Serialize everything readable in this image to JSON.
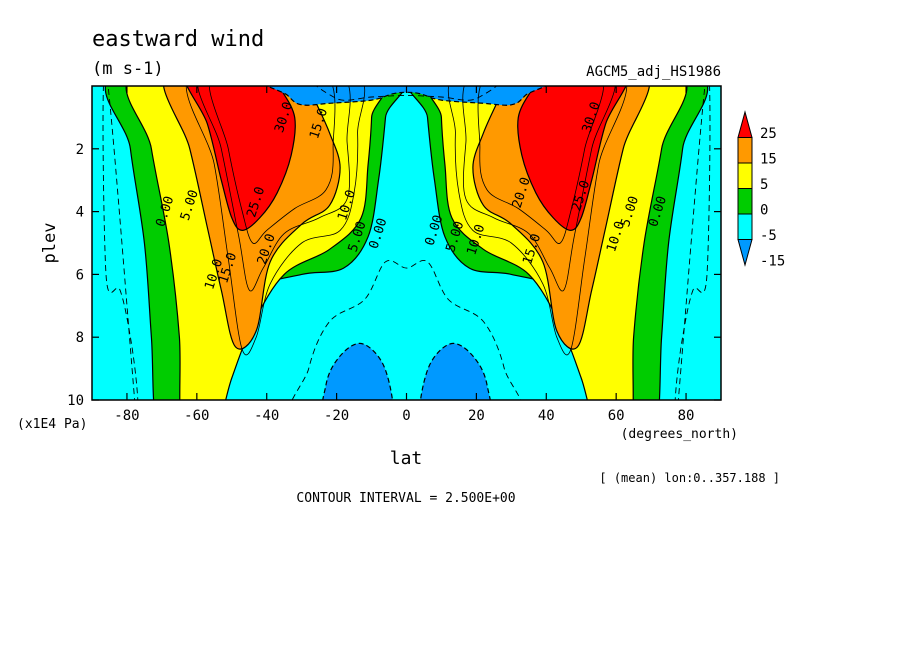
{
  "chart_data": {
    "type": "contour",
    "title": "eastward wind",
    "units": "(m s-1)",
    "dataset": "AGCM5_adj_HS1986",
    "xlabel": "lat",
    "x_units": "(degrees_north)",
    "ylabel": "plev",
    "y_units": "(x1E4 Pa)",
    "xlim": [
      -90,
      90
    ],
    "ylim": [
      10,
      0
    ],
    "x_ticks": [
      "-80",
      "-60",
      "-40",
      "-20",
      "0",
      "20",
      "40",
      "60",
      "80"
    ],
    "y_ticks": [
      "2",
      "4",
      "6",
      "8",
      "10"
    ],
    "averaging_note": "[ (mean) lon:0..357.188 ]",
    "contour_interval": "CONTOUR INTERVAL = 2.500E+00",
    "colorbar": {
      "labels": [
        "25",
        "15",
        "5",
        "0",
        "-5",
        "-15"
      ],
      "colors": [
        "#ff0000",
        "#ff9900",
        "#ffff00",
        "#00cc00",
        "#00ffff",
        "#0099ff"
      ]
    },
    "contour_labels": [
      {
        "text": "30.0",
        "lat": -35,
        "plev": 1.0
      },
      {
        "text": "15.0",
        "lat": -25,
        "plev": 1.2
      },
      {
        "text": "25.0",
        "lat": -43,
        "plev": 3.7
      },
      {
        "text": "20.0",
        "lat": -40,
        "plev": 5.2
      },
      {
        "text": "15.0",
        "lat": -51,
        "plev": 5.8
      },
      {
        "text": "10.0",
        "lat": -55,
        "plev": 6.0
      },
      {
        "text": "10.0",
        "lat": -17,
        "plev": 3.8
      },
      {
        "text": "5.00",
        "lat": -14,
        "plev": 4.8
      },
      {
        "text": "0.00",
        "lat": -8,
        "plev": 4.7
      },
      {
        "text": "5.00",
        "lat": -62,
        "plev": 3.8
      },
      {
        "text": "0.00",
        "lat": -69,
        "plev": 4.0
      },
      {
        "text": "30.0",
        "lat": 53,
        "plev": 1.0
      },
      {
        "text": "20.0",
        "lat": 33,
        "plev": 3.4
      },
      {
        "text": "25.0",
        "lat": 50,
        "plev": 3.5
      },
      {
        "text": "10.0",
        "lat": 20,
        "plev": 4.9
      },
      {
        "text": "15.0",
        "lat": 36,
        "plev": 5.2
      },
      {
        "text": "5.00",
        "lat": 14,
        "plev": 4.8
      },
      {
        "text": "0.00",
        "lat": 8,
        "plev": 4.6
      },
      {
        "text": "10.0",
        "lat": 60,
        "plev": 4.8
      },
      {
        "text": "5.00",
        "lat": 64,
        "plev": 4.0
      },
      {
        "text": "0.00",
        "lat": 72,
        "plev": 4.0
      }
    ]
  }
}
